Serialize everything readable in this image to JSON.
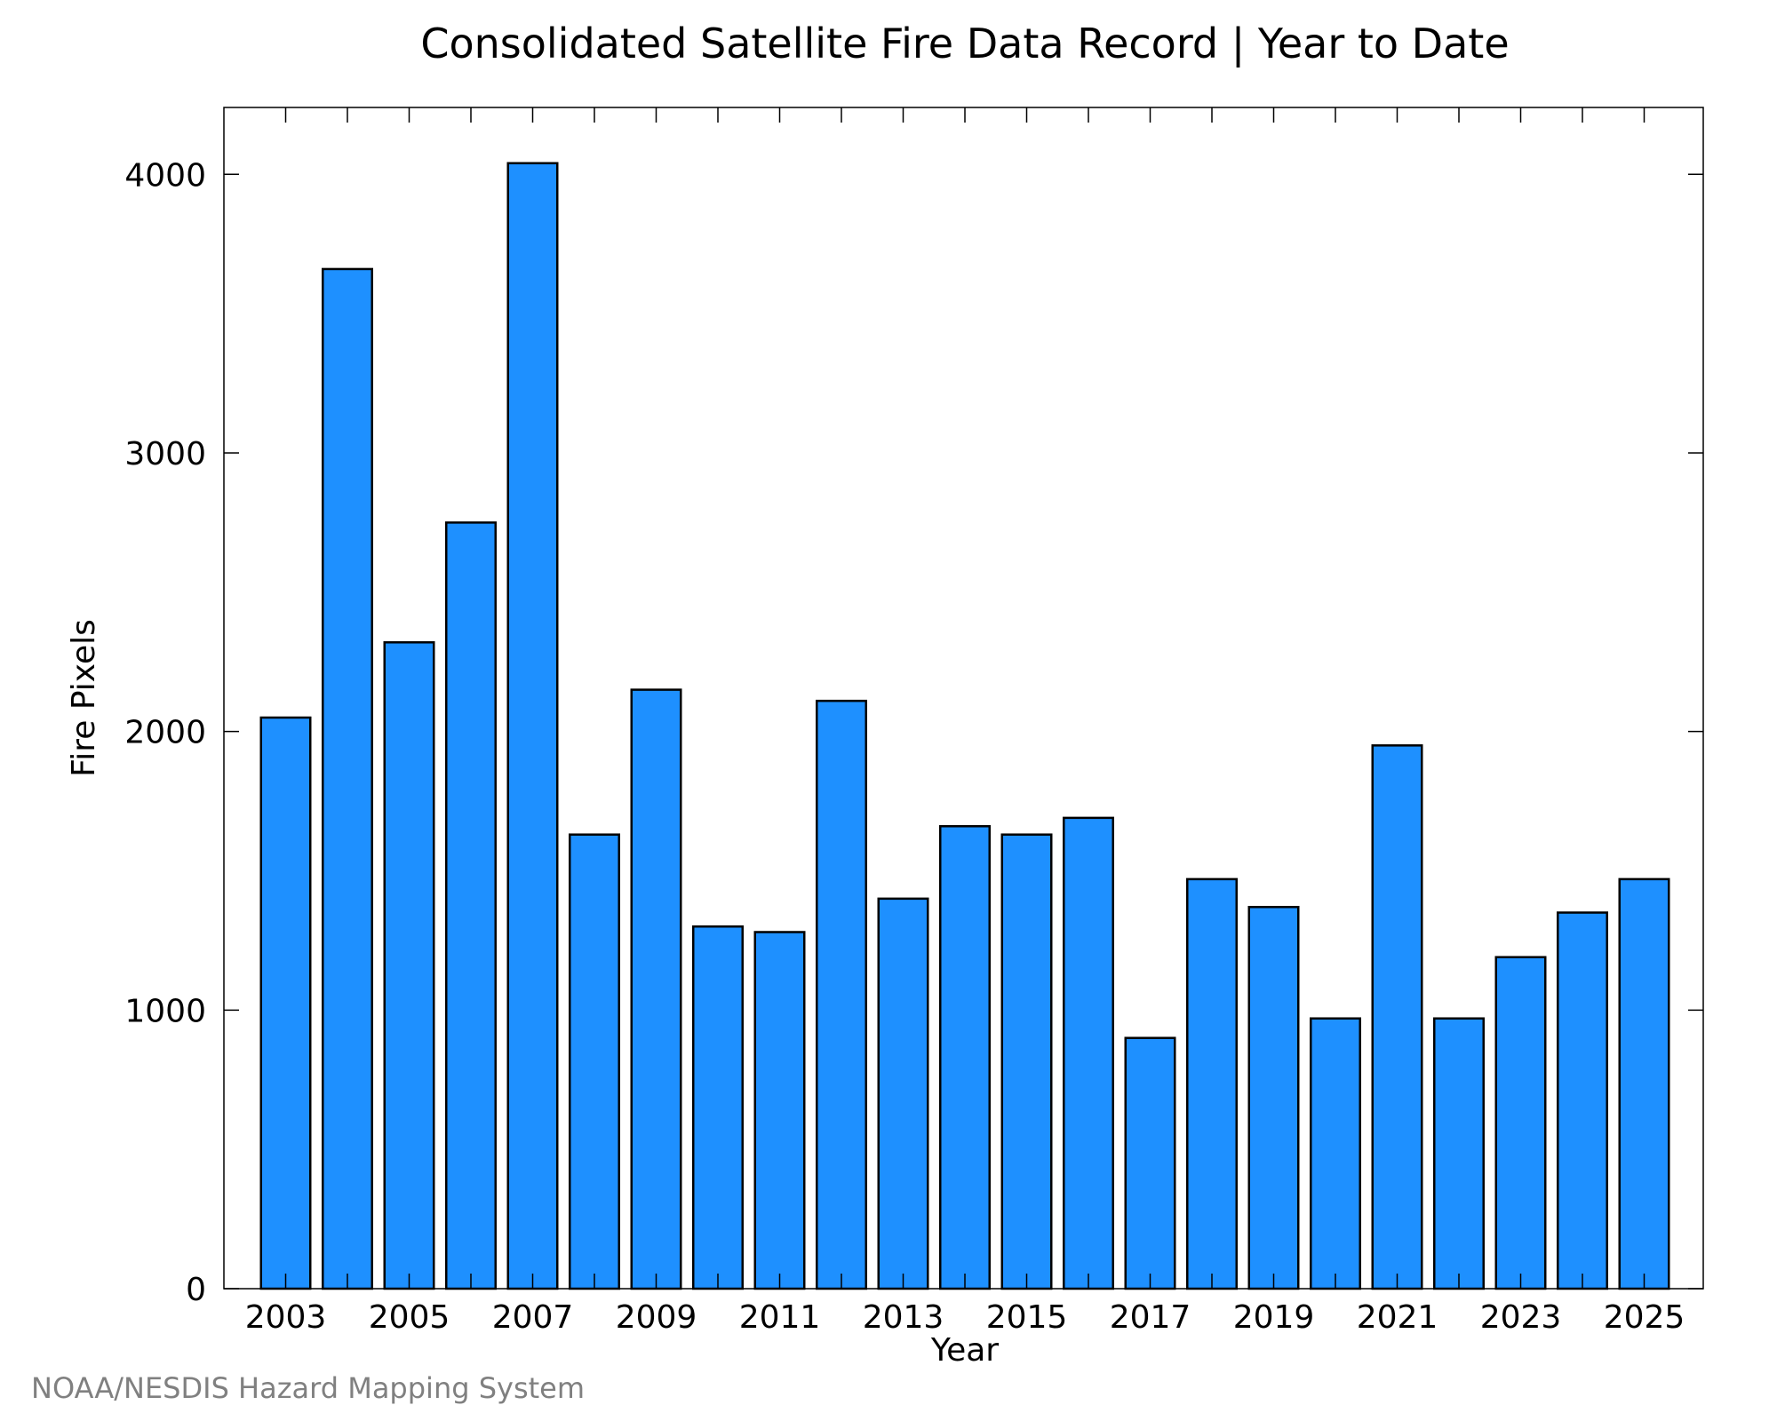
{
  "chart_data": {
    "type": "bar",
    "title": "Consolidated Satellite Fire Data Record | Year to Date",
    "xlabel": "Year",
    "ylabel": "Fire Pixels",
    "credit": "NOAA/NESDIS Hazard Mapping System",
    "categories": [
      "2003",
      "2004",
      "2005",
      "2006",
      "2007",
      "2008",
      "2009",
      "2010",
      "2011",
      "2012",
      "2013",
      "2014",
      "2015",
      "2016",
      "2017",
      "2018",
      "2019",
      "2020",
      "2021",
      "2022",
      "2023",
      "2024",
      "2025"
    ],
    "values": [
      2050,
      3660,
      2320,
      2750,
      4040,
      1630,
      2150,
      1300,
      1280,
      2110,
      1400,
      1660,
      1630,
      1690,
      900,
      1470,
      1370,
      970,
      1950,
      970,
      1190,
      1350,
      1470
    ],
    "x_tick_labels": [
      "2003",
      "2005",
      "2007",
      "2009",
      "2011",
      "2013",
      "2015",
      "2017",
      "2019",
      "2021",
      "2023",
      "2025"
    ],
    "y_ticks": [
      0,
      1000,
      2000,
      3000,
      4000
    ],
    "y_tick_labels": [
      "0",
      "1000",
      "2000",
      "3000",
      "4000"
    ],
    "ylim": [
      0,
      4240
    ],
    "bar_color": "#1e90ff",
    "bar_edge_color": "#000000",
    "grid": false,
    "legend": "none"
  }
}
